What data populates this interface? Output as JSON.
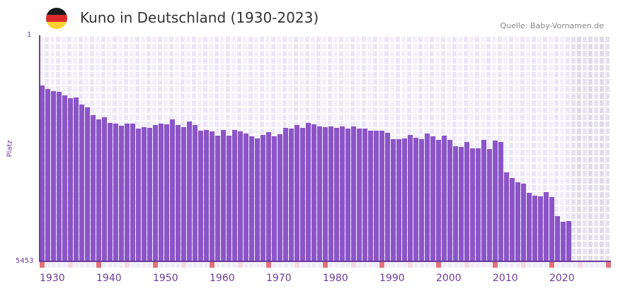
{
  "header": {
    "title": "Kuno in Deutschland (1930-2023)",
    "source": "Quelle: Baby-Vornamen.de",
    "flag_colors": [
      "#1a1a1a",
      "#dd2b2b",
      "#fdd231"
    ]
  },
  "axis": {
    "y_top_label": "1",
    "y_bottom_label": "5453",
    "y_title": "Platz",
    "x_labels": [
      "1930",
      "1940",
      "1950",
      "1960",
      "1970",
      "1980",
      "1990",
      "2000",
      "2010",
      "2020"
    ]
  },
  "colors": {
    "bar": "#8b55c8",
    "axis": "#6a3d9a",
    "marker_decade": "#e4707a",
    "marker_half": "#f5d8e0"
  },
  "chart_data": {
    "type": "bar",
    "title": "Kuno in Deutschland (1930-2023)",
    "xlabel": "",
    "ylabel": "Platz",
    "ylim": [
      1,
      5453
    ],
    "y_inverted": true,
    "categories": [
      1930,
      1931,
      1932,
      1933,
      1934,
      1935,
      1936,
      1937,
      1938,
      1939,
      1940,
      1941,
      1942,
      1943,
      1944,
      1945,
      1946,
      1947,
      1948,
      1949,
      1950,
      1951,
      1952,
      1953,
      1954,
      1955,
      1956,
      1957,
      1958,
      1959,
      1960,
      1961,
      1962,
      1963,
      1964,
      1965,
      1966,
      1967,
      1968,
      1969,
      1970,
      1971,
      1972,
      1973,
      1974,
      1975,
      1976,
      1977,
      1978,
      1979,
      1980,
      1981,
      1982,
      1983,
      1984,
      1985,
      1986,
      1987,
      1988,
      1989,
      1990,
      1991,
      1992,
      1993,
      1994,
      1995,
      1996,
      1997,
      1998,
      1999,
      2000,
      2001,
      2002,
      2003,
      2004,
      2005,
      2006,
      2007,
      2008,
      2009,
      2010,
      2011,
      2012,
      2013,
      2014,
      2015,
      2016,
      2017,
      2018,
      2019,
      2020,
      2021,
      2022,
      2023
    ],
    "values": [
      1211,
      1296,
      1347,
      1364,
      1449,
      1517,
      1500,
      1670,
      1738,
      1926,
      2028,
      1977,
      2113,
      2130,
      2181,
      2130,
      2130,
      2249,
      2215,
      2232,
      2164,
      2130,
      2147,
      2028,
      2164,
      2215,
      2079,
      2164,
      2300,
      2283,
      2317,
      2420,
      2283,
      2420,
      2283,
      2317,
      2368,
      2437,
      2488,
      2403,
      2335,
      2437,
      2386,
      2232,
      2249,
      2164,
      2232,
      2113,
      2147,
      2198,
      2215,
      2198,
      2232,
      2198,
      2249,
      2198,
      2249,
      2249,
      2300,
      2300,
      2300,
      2351,
      2505,
      2505,
      2488,
      2403,
      2471,
      2505,
      2368,
      2437,
      2522,
      2420,
      2522,
      2675,
      2692,
      2573,
      2726,
      2726,
      2522,
      2743,
      2539,
      2573,
      3306,
      3442,
      3544,
      3578,
      3800,
      3868,
      3885,
      3782,
      3902,
      4362,
      4498,
      4481
    ]
  }
}
